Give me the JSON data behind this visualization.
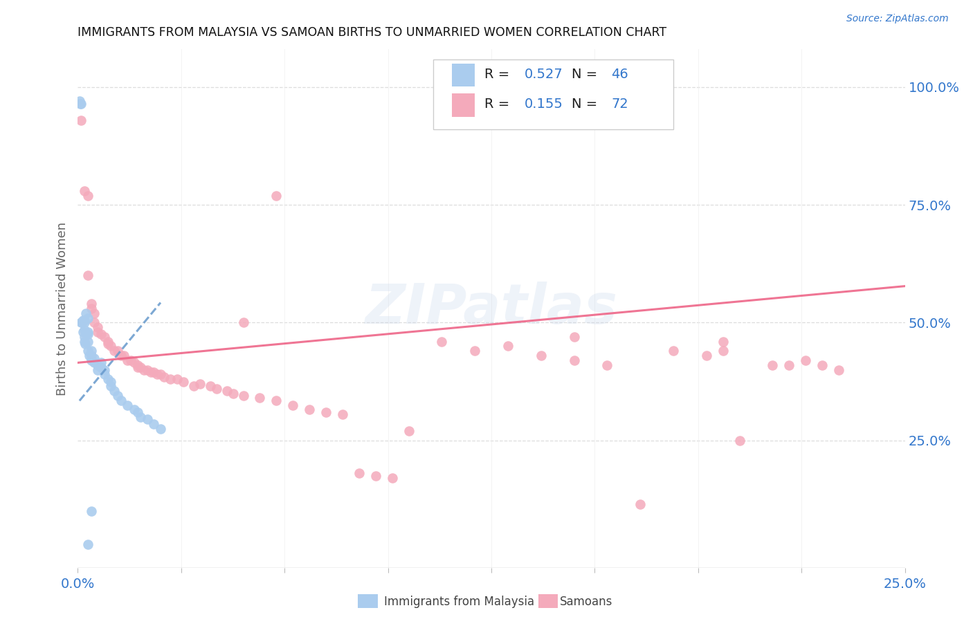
{
  "title": "IMMIGRANTS FROM MALAYSIA VS SAMOAN BIRTHS TO UNMARRIED WOMEN CORRELATION CHART",
  "source": "Source: ZipAtlas.com",
  "ylabel": "Births to Unmarried Women",
  "legend_label1": "Immigrants from Malaysia",
  "legend_label2": "Samoans",
  "R1": "0.527",
  "N1": "46",
  "R2": "0.155",
  "N2": "72",
  "color_blue": "#aaccee",
  "color_pink": "#f4aabb",
  "color_blue_line": "#6699cc",
  "color_pink_line": "#ee6688",
  "color_blue_text": "#3377cc",
  "watermark": "ZIPatlas",
  "xlim": [
    0.0,
    0.25
  ],
  "ylim": [
    -0.02,
    1.08
  ],
  "blue_x": [
    0.0005,
    0.0008,
    0.001,
    0.001,
    0.0012,
    0.0015,
    0.0015,
    0.002,
    0.002,
    0.002,
    0.002,
    0.002,
    0.0022,
    0.0025,
    0.003,
    0.003,
    0.003,
    0.003,
    0.003,
    0.0035,
    0.004,
    0.004,
    0.004,
    0.005,
    0.005,
    0.006,
    0.006,
    0.007,
    0.007,
    0.008,
    0.008,
    0.009,
    0.01,
    0.01,
    0.011,
    0.012,
    0.013,
    0.015,
    0.017,
    0.018,
    0.019,
    0.021,
    0.023,
    0.025,
    0.003,
    0.004
  ],
  "blue_y": [
    0.97,
    0.965,
    0.965,
    0.5,
    0.5,
    0.505,
    0.48,
    0.505,
    0.5,
    0.485,
    0.47,
    0.46,
    0.455,
    0.52,
    0.51,
    0.48,
    0.475,
    0.46,
    0.44,
    0.43,
    0.44,
    0.43,
    0.42,
    0.425,
    0.415,
    0.41,
    0.4,
    0.415,
    0.405,
    0.4,
    0.39,
    0.38,
    0.375,
    0.365,
    0.355,
    0.345,
    0.335,
    0.325,
    0.315,
    0.31,
    0.3,
    0.295,
    0.285,
    0.275,
    0.03,
    0.1
  ],
  "pink_x": [
    0.001,
    0.003,
    0.004,
    0.004,
    0.005,
    0.005,
    0.006,
    0.006,
    0.007,
    0.008,
    0.009,
    0.009,
    0.01,
    0.011,
    0.012,
    0.013,
    0.014,
    0.015,
    0.016,
    0.017,
    0.018,
    0.018,
    0.019,
    0.02,
    0.021,
    0.022,
    0.023,
    0.024,
    0.025,
    0.026,
    0.028,
    0.03,
    0.032,
    0.035,
    0.037,
    0.04,
    0.042,
    0.045,
    0.047,
    0.05,
    0.055,
    0.06,
    0.065,
    0.07,
    0.075,
    0.08,
    0.085,
    0.09,
    0.095,
    0.1,
    0.11,
    0.12,
    0.13,
    0.14,
    0.15,
    0.16,
    0.17,
    0.18,
    0.19,
    0.2,
    0.21,
    0.215,
    0.22,
    0.225,
    0.23,
    0.002,
    0.003,
    0.05,
    0.15,
    0.195,
    0.195,
    0.06
  ],
  "pink_y": [
    0.93,
    0.6,
    0.54,
    0.53,
    0.52,
    0.5,
    0.49,
    0.48,
    0.475,
    0.47,
    0.46,
    0.455,
    0.45,
    0.44,
    0.44,
    0.43,
    0.43,
    0.42,
    0.42,
    0.415,
    0.41,
    0.405,
    0.405,
    0.4,
    0.4,
    0.395,
    0.395,
    0.39,
    0.39,
    0.385,
    0.38,
    0.38,
    0.375,
    0.365,
    0.37,
    0.365,
    0.36,
    0.355,
    0.35,
    0.345,
    0.34,
    0.335,
    0.325,
    0.315,
    0.31,
    0.305,
    0.18,
    0.175,
    0.17,
    0.27,
    0.46,
    0.44,
    0.45,
    0.43,
    0.42,
    0.41,
    0.115,
    0.44,
    0.43,
    0.25,
    0.41,
    0.41,
    0.42,
    0.41,
    0.4,
    0.78,
    0.77,
    0.5,
    0.47,
    0.46,
    0.44,
    0.77
  ],
  "blue_trend_x": [
    0.0005,
    0.025
  ],
  "blue_trend_y_intercept": 0.33,
  "blue_trend_slope": 8.5,
  "pink_trend_x": [
    0.0,
    0.25
  ],
  "pink_trend_y_intercept": 0.415,
  "pink_trend_slope": 0.65
}
